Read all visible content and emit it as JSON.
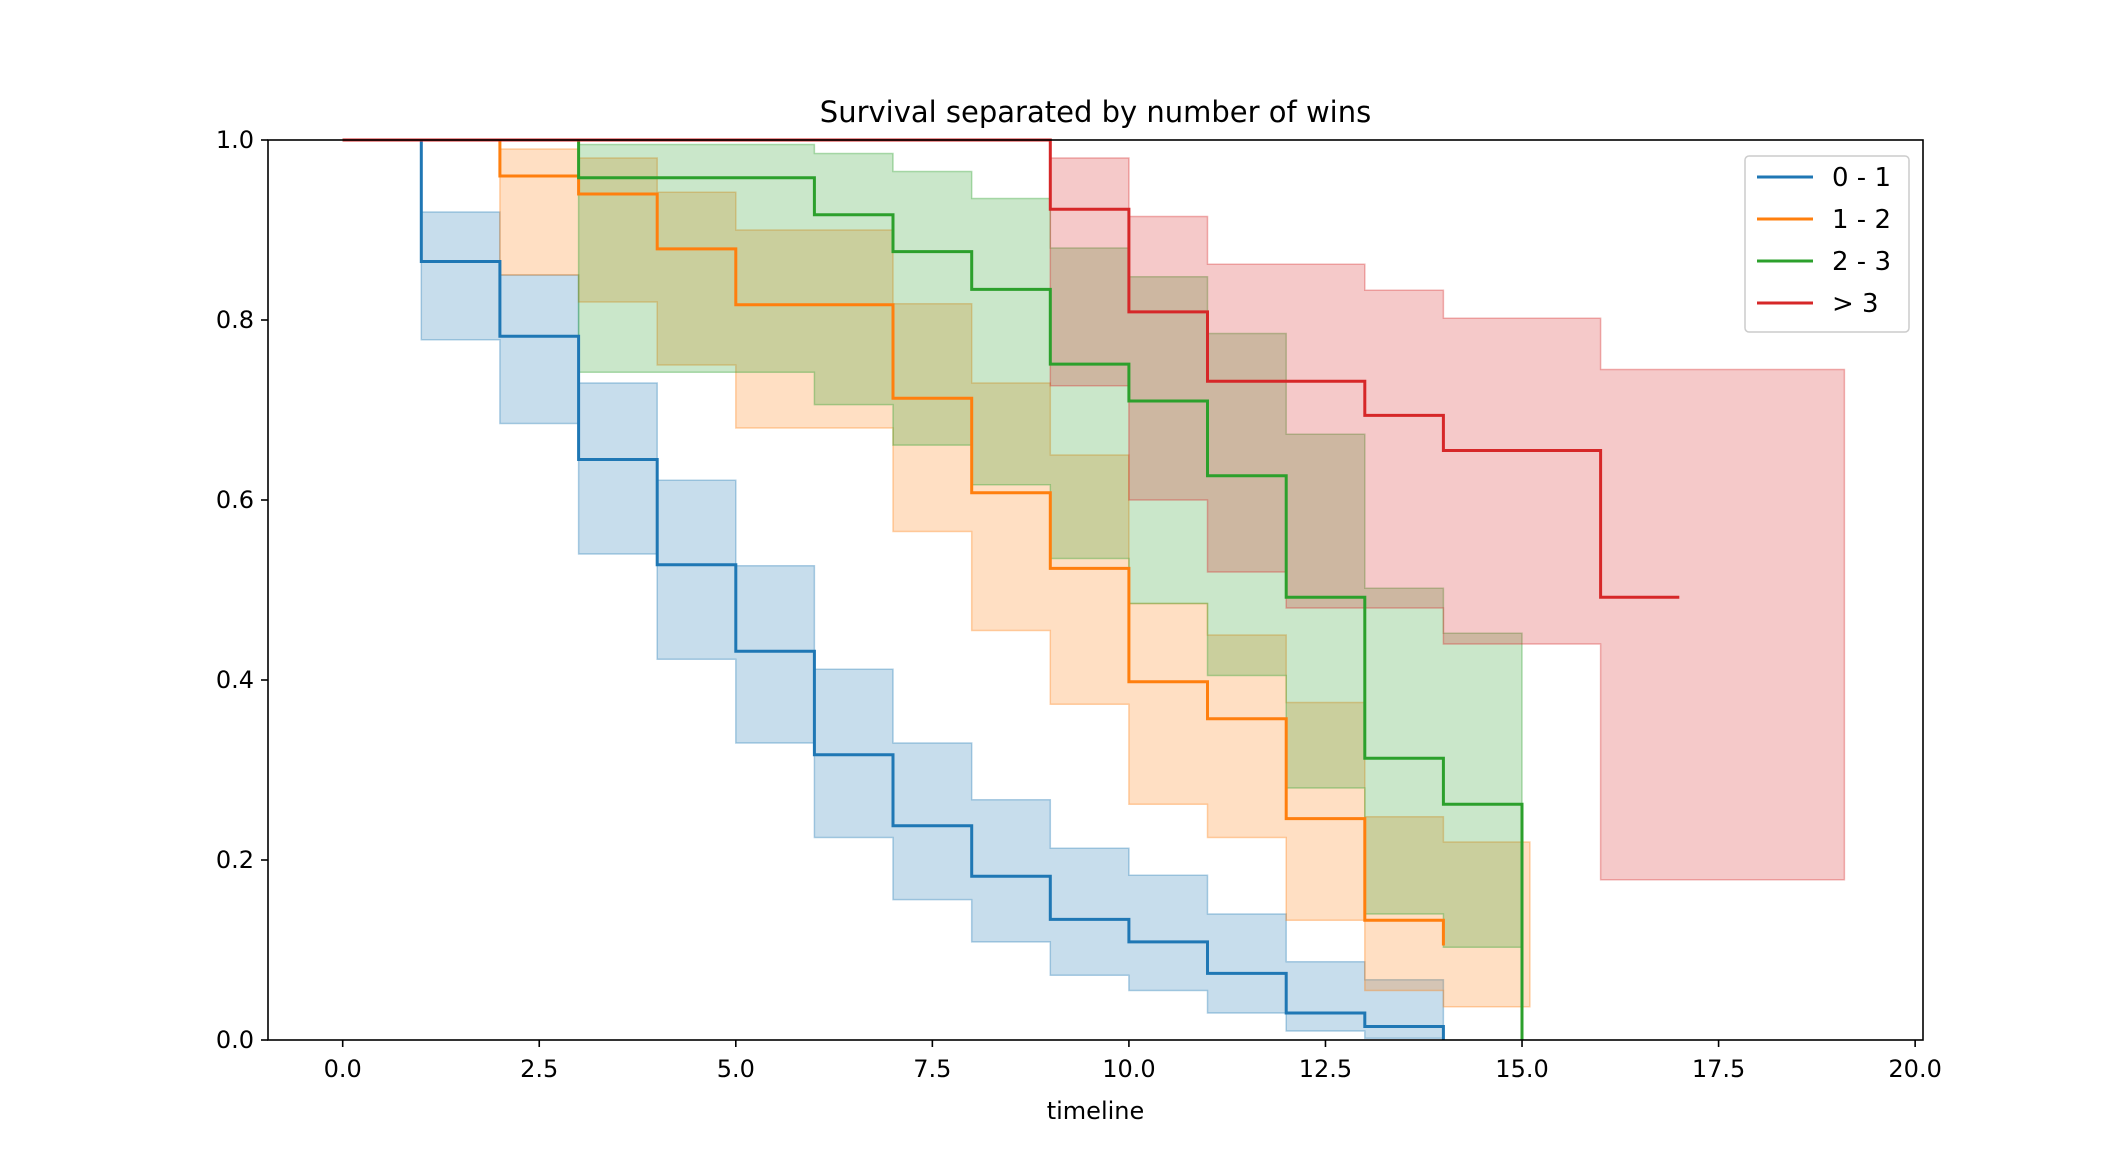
{
  "chart_data": {
    "type": "line",
    "subtype": "kaplan-meier step survival curves with confidence bands",
    "title": "Survival separated by number of wins",
    "xlabel": "timeline",
    "ylabel": "",
    "xlim": [
      -0.95,
      20.1
    ],
    "ylim": [
      0.0,
      1.0
    ],
    "xticks": [
      0.0,
      2.5,
      5.0,
      7.5,
      10.0,
      12.5,
      15.0,
      17.5,
      20.0
    ],
    "xtick_labels": [
      "0.0",
      "2.5",
      "5.0",
      "7.5",
      "10.0",
      "12.5",
      "15.0",
      "17.5",
      "20.0"
    ],
    "yticks": [
      0.0,
      0.2,
      0.4,
      0.6,
      0.8,
      1.0
    ],
    "ytick_labels": [
      "0.0",
      "0.2",
      "0.4",
      "0.6",
      "0.8",
      "1.0"
    ],
    "grid": false,
    "legend_position": "top-right",
    "band_opacity": 0.25,
    "series": [
      {
        "name": "0 - 1",
        "color": "#1f77b4",
        "times": [
          0,
          1,
          2,
          3,
          4,
          5,
          6,
          7,
          8,
          9,
          10,
          11,
          12,
          13,
          14
        ],
        "survival": [
          1.0,
          0.865,
          0.782,
          0.645,
          0.528,
          0.432,
          0.317,
          0.238,
          0.182,
          0.134,
          0.109,
          0.074,
          0.03,
          0.015,
          0.0
        ],
        "ci_times": [
          1,
          2,
          3,
          4,
          5,
          6,
          7,
          8,
          9,
          10,
          11,
          12,
          13,
          14
        ],
        "ci_lower": [
          0.778,
          0.685,
          0.54,
          0.423,
          0.33,
          0.225,
          0.156,
          0.109,
          0.072,
          0.055,
          0.03,
          0.01,
          0.002,
          0.0
        ],
        "ci_upper": [
          0.92,
          0.85,
          0.73,
          0.622,
          0.527,
          0.412,
          0.33,
          0.267,
          0.213,
          0.183,
          0.14,
          0.087,
          0.067,
          0.0
        ]
      },
      {
        "name": "1 - 2",
        "color": "#ff7f0e",
        "times": [
          0,
          2,
          3,
          4,
          5,
          7,
          8,
          9,
          10,
          11,
          12,
          13,
          14
        ],
        "survival": [
          1.0,
          0.96,
          0.94,
          0.879,
          0.817,
          0.713,
          0.608,
          0.524,
          0.398,
          0.357,
          0.246,
          0.133,
          0.105
        ],
        "ci_times": [
          2,
          3,
          4,
          5,
          7,
          8,
          9,
          10,
          11,
          12,
          13,
          14,
          15.1
        ],
        "ci_lower": [
          0.85,
          0.82,
          0.75,
          0.68,
          0.565,
          0.455,
          0.373,
          0.262,
          0.225,
          0.133,
          0.055,
          0.037,
          0.037
        ],
        "ci_upper": [
          0.99,
          0.98,
          0.942,
          0.9,
          0.818,
          0.73,
          0.65,
          0.485,
          0.45,
          0.375,
          0.248,
          0.22,
          0.22
        ]
      },
      {
        "name": "2 - 3",
        "color": "#2ca02c",
        "times": [
          0,
          3,
          6,
          7,
          8,
          9,
          10,
          11,
          12,
          13,
          14,
          15
        ],
        "survival": [
          1.0,
          0.958,
          0.917,
          0.876,
          0.834,
          0.751,
          0.71,
          0.627,
          0.492,
          0.313,
          0.262,
          0.0
        ],
        "ci_times": [
          3,
          6,
          7,
          8,
          9,
          10,
          11,
          12,
          13,
          14,
          15
        ],
        "ci_lower": [
          0.742,
          0.706,
          0.661,
          0.617,
          0.535,
          0.485,
          0.405,
          0.28,
          0.14,
          0.103,
          0.0
        ],
        "ci_upper": [
          0.995,
          0.985,
          0.965,
          0.935,
          0.88,
          0.848,
          0.785,
          0.673,
          0.502,
          0.452,
          0.0
        ]
      },
      {
        "name": "> 3",
        "color": "#d62728",
        "times": [
          0,
          9,
          10,
          11,
          13,
          14,
          16,
          17
        ],
        "survival": [
          1.0,
          0.923,
          0.809,
          0.732,
          0.694,
          0.655,
          0.492,
          0.492
        ],
        "ci_times": [
          9,
          10,
          11,
          12,
          13,
          14,
          16,
          19.1
        ],
        "ci_lower": [
          0.727,
          0.6,
          0.52,
          0.48,
          0.48,
          0.44,
          0.178,
          0.178
        ],
        "ci_upper": [
          0.98,
          0.915,
          0.862,
          0.862,
          0.833,
          0.802,
          0.745,
          0.745
        ]
      }
    ]
  }
}
